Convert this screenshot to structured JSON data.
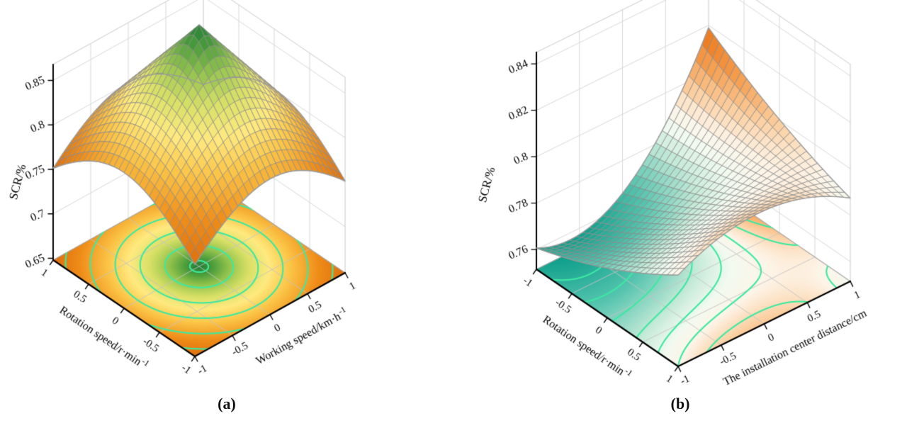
{
  "figure": {
    "captions": {
      "a": "(a)",
      "b": "(b)"
    }
  },
  "chart_data": [
    {
      "type": "surface3d",
      "panel": "a",
      "axes": {
        "z": {
          "label": "SCR/%",
          "ticks": [
            0.65,
            0.7,
            0.75,
            0.8,
            0.85
          ],
          "range": [
            0.65,
            0.85
          ]
        },
        "x": {
          "label": "Rotation speed/r·min⁻¹",
          "ticks": [
            1,
            0.5,
            0,
            -0.5,
            -1
          ],
          "range": [
            -1,
            1
          ]
        },
        "y": {
          "label": "Working speed/km·h⁻¹",
          "ticks": [
            -1,
            -0.5,
            0,
            0.5,
            1
          ],
          "range": [
            -1,
            1
          ]
        }
      },
      "surface": {
        "model": {
          "type": "cone",
          "z_peak": 0.8575,
          "slope": 0.0831
        },
        "peak": {
          "x": 0,
          "y": 0,
          "z": 0.8575
        },
        "corner_z": 0.74,
        "grid": {
          "x": [
            -1,
            -0.5,
            0,
            0.5,
            1
          ],
          "y": [
            -1,
            -0.5,
            0,
            0.5,
            1
          ],
          "z": [
            [
              0.74,
              0.765,
              0.774,
              0.765,
              0.74
            ],
            [
              0.765,
              0.799,
              0.816,
              0.799,
              0.765
            ],
            [
              0.774,
              0.816,
              0.8575,
              0.816,
              0.774
            ],
            [
              0.765,
              0.799,
              0.816,
              0.799,
              0.765
            ],
            [
              0.74,
              0.765,
              0.774,
              0.765,
              0.74
            ]
          ]
        }
      },
      "contours": {
        "levels": [
          0.75,
          0.77,
          0.79,
          0.81,
          0.83,
          0.85
        ]
      },
      "colors": {
        "colormap": [
          [
            0,
            "#dd6f0d"
          ],
          [
            0.18,
            "#ef8c18"
          ],
          [
            0.38,
            "#fbc648"
          ],
          [
            0.52,
            "#ffea80"
          ],
          [
            0.66,
            "#d8e066"
          ],
          [
            0.8,
            "#8fc24c"
          ],
          [
            0.9,
            "#4f9f3c"
          ],
          [
            1,
            "#1e7c35"
          ]
        ],
        "contour_line": "#3be9a1",
        "mesh_line": "#8d8d8d",
        "wall_grid": "#d8d8d8",
        "frame_line": "#c9c9c9",
        "axis": "#000000"
      }
    },
    {
      "type": "surface3d",
      "panel": "b",
      "axes": {
        "z": {
          "label": "SCR/%",
          "ticks": [
            0.76,
            0.78,
            0.8,
            0.82,
            0.84
          ],
          "range": [
            0.76,
            0.84
          ]
        },
        "x": {
          "label": "Rotation speed/r·min⁻¹",
          "ticks": [
            -1,
            -0.5,
            0,
            0.5,
            1
          ],
          "range": [
            -1,
            1
          ]
        },
        "y": {
          "label": "The installation center distance/cm",
          "ticks": [
            -1,
            -0.5,
            0,
            0.5,
            1
          ],
          "range": [
            -1,
            1
          ]
        }
      },
      "surface": {
        "model": {
          "type": "poly",
          "c0": 0.785,
          "cr": -0.0005,
          "cd": 0.0195,
          "crd": -0.022,
          "cr2": 0.004,
          "cd2": 0.009,
          "crd2": -0.025
        },
        "corner_values": {
          "rot-1_dist-1": 0.757,
          "rot1_dist-1": 0.8,
          "rot-1_dist1": 0.84,
          "rot1_dist1": 0.795
        },
        "grid": {
          "x": [
            -1,
            -0.5,
            0,
            0.5,
            1
          ],
          "y": [
            -1,
            -0.5,
            0,
            0.5,
            1
          ],
          "z": [
            [
              0.757,
              0.752,
              0.7645,
              0.794,
              0.84
            ],
            [
              0.765,
              0.764,
              0.774,
              0.794,
              0.826
            ],
            [
              0.7745,
              0.7775,
              0.785,
              0.797,
              0.8135
            ],
            [
              0.786,
              0.793,
              0.798,
              0.803,
              0.804
            ],
            [
              0.8,
              0.811,
              0.8135,
              0.808,
              0.795
            ]
          ]
        }
      },
      "contours": {
        "levels": [
          0.76,
          0.768,
          0.776,
          0.784,
          0.792,
          0.8,
          0.808,
          0.816,
          0.824,
          0.832
        ]
      },
      "colors": {
        "colormap": [
          [
            0,
            "#0b9e8a"
          ],
          [
            0.2,
            "#55c4ae"
          ],
          [
            0.38,
            "#c5ead8"
          ],
          [
            0.48,
            "#f2faf0"
          ],
          [
            0.56,
            "#fdf4e8"
          ],
          [
            0.68,
            "#fbce9e"
          ],
          [
            0.82,
            "#f59d4d"
          ],
          [
            1,
            "#eb6f0e"
          ]
        ],
        "contour_line": "#3be9a1",
        "mesh_line": "#8d8d8d",
        "wall_grid": "#d8d8d8",
        "frame_line": "#c9c9c9",
        "axis": "#000000"
      }
    }
  ]
}
